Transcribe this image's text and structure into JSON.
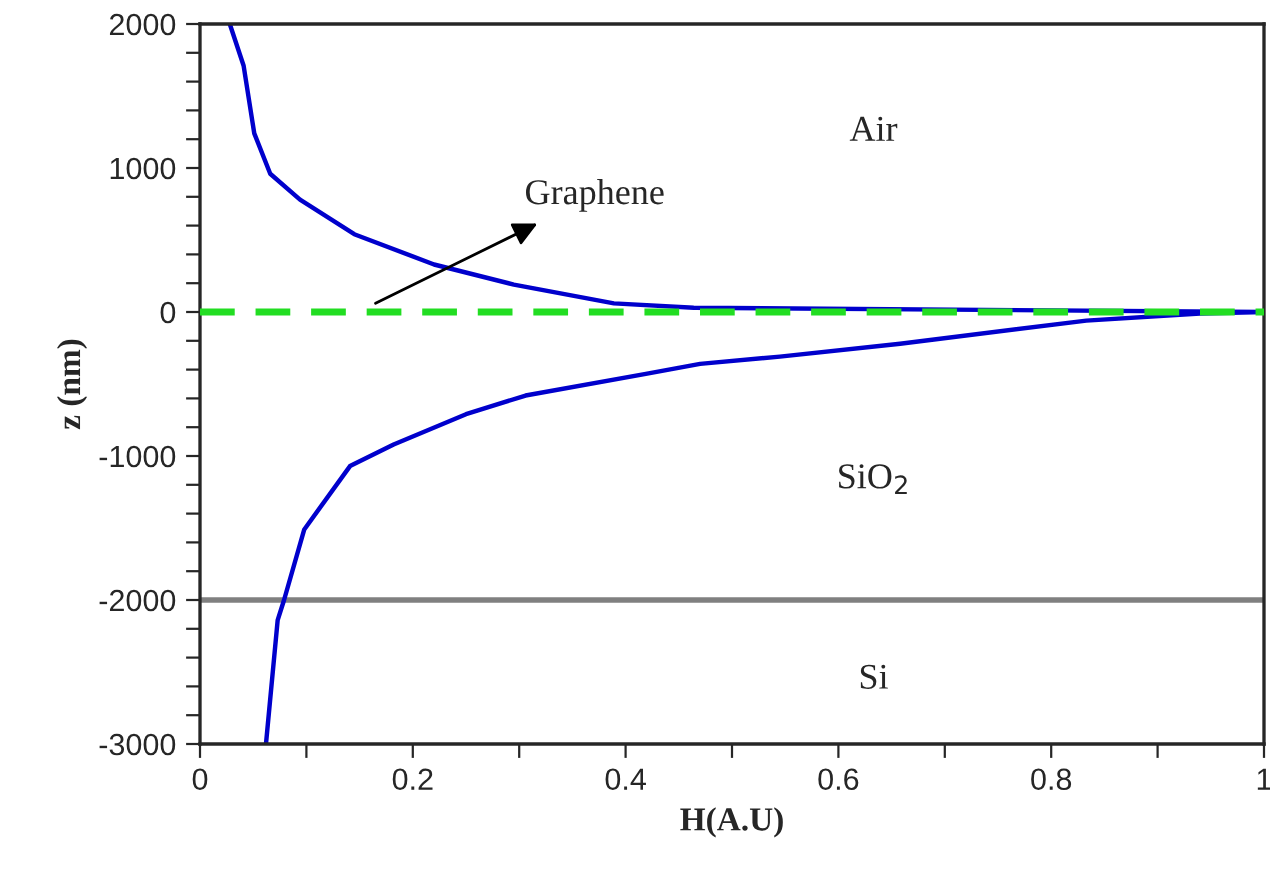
{
  "chart_data": {
    "type": "line",
    "xlabel": "H(A.U)",
    "ylabel": "z (nm)",
    "xlim": [
      0,
      1
    ],
    "ylim": [
      -3000,
      2000
    ],
    "xticks": [
      0,
      {
        "value": 0.1,
        "label": null
      },
      0.2,
      {
        "value": 0.3,
        "label": null
      },
      0.4,
      {
        "value": 0.5,
        "label": null
      },
      0.6,
      {
        "value": 0.7,
        "label": null
      },
      0.8,
      {
        "value": 0.9,
        "label": null
      },
      1
    ],
    "yticks": [
      -3000,
      {
        "value": -2800,
        "label": null
      },
      {
        "value": -2600,
        "label": null
      },
      {
        "value": -2400,
        "label": null
      },
      {
        "value": -2200,
        "label": null
      },
      -2000,
      {
        "value": -1800,
        "label": null
      },
      {
        "value": -1600,
        "label": null
      },
      {
        "value": -1400,
        "label": null
      },
      {
        "value": -1200,
        "label": null
      },
      -1000,
      {
        "value": -800,
        "label": null
      },
      {
        "value": -600,
        "label": null
      },
      {
        "value": -400,
        "label": null
      },
      {
        "value": -200,
        "label": null
      },
      0,
      {
        "value": 200,
        "label": null
      },
      {
        "value": 400,
        "label": null
      },
      {
        "value": 600,
        "label": null
      },
      {
        "value": 800,
        "label": null
      },
      1000,
      {
        "value": 1200,
        "label": null
      },
      {
        "value": 1400,
        "label": null
      },
      {
        "value": 1600,
        "label": null
      },
      {
        "value": 1800,
        "label": null
      },
      2000
    ],
    "grid": false,
    "legend": false,
    "series": [
      {
        "color": "#0000cc",
        "x": [
          0.028,
          0.041,
          0.051,
          0.066,
          0.094,
          0.145,
          0.22,
          0.295,
          0.389,
          0.464,
          1.0,
          0.94,
          0.833,
          0.658,
          0.545,
          0.47,
          0.419,
          0.306,
          0.25,
          0.182,
          0.141,
          0.098,
          0.079,
          0.073,
          0.062
        ],
        "values": [
          2000,
          1710,
          1240,
          960,
          780,
          540,
          330,
          190,
          60,
          30,
          0,
          -10,
          -60,
          -220,
          -310,
          -360,
          -430,
          -580,
          -710,
          -920,
          -1070,
          -1510,
          -2000,
          -2140,
          -3000
        ]
      }
    ],
    "ref_lines": [
      {
        "axis": "y",
        "value": 0,
        "color": "#22dd22",
        "line_style": "dashed"
      },
      {
        "axis": "y",
        "value": -2000,
        "color": "#808080",
        "line_style": "solid"
      }
    ],
    "annotations": [
      "Air",
      "SiO$_{2}$",
      "Si",
      {
        "text": "Graphene",
        "x": 0.165,
        "y": 60
      }
    ]
  }
}
